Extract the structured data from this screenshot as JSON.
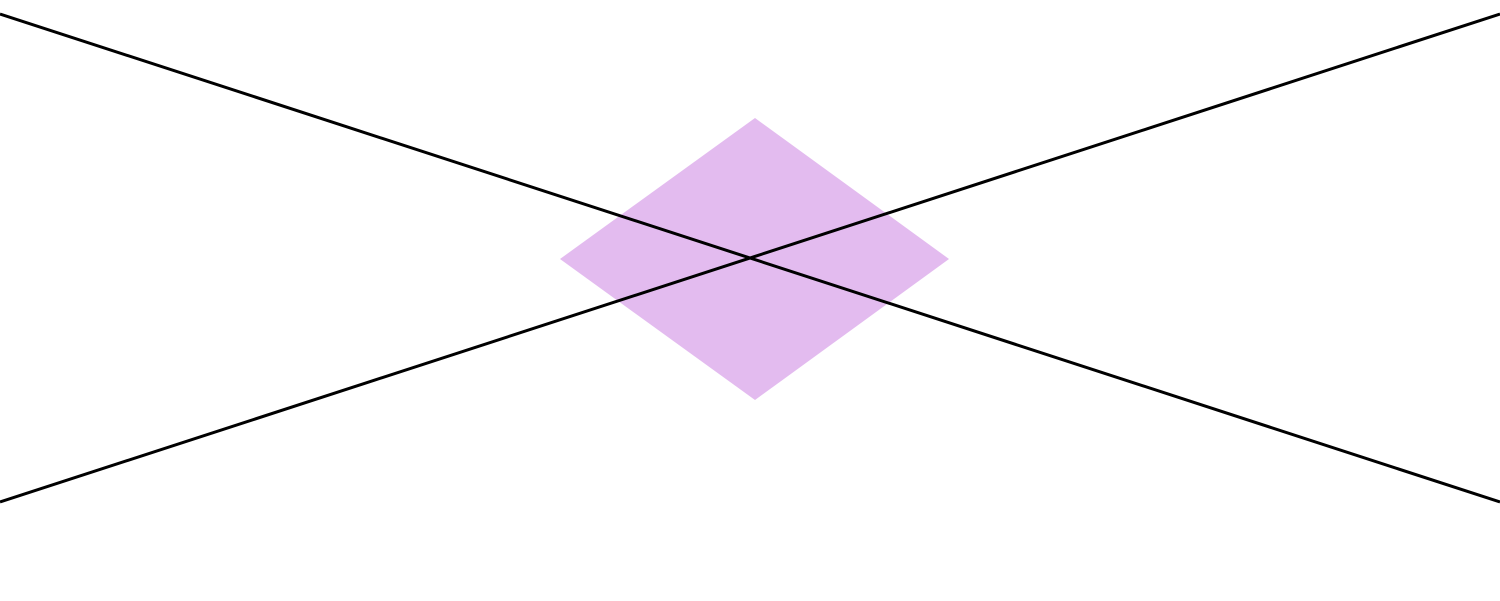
{
  "diagram": {
    "background_color": "#ffffff",
    "diamond": {
      "fill_color": "#c878e0",
      "fill_opacity": 0.5
    },
    "lines": {
      "stroke_color": "#000000"
    }
  }
}
